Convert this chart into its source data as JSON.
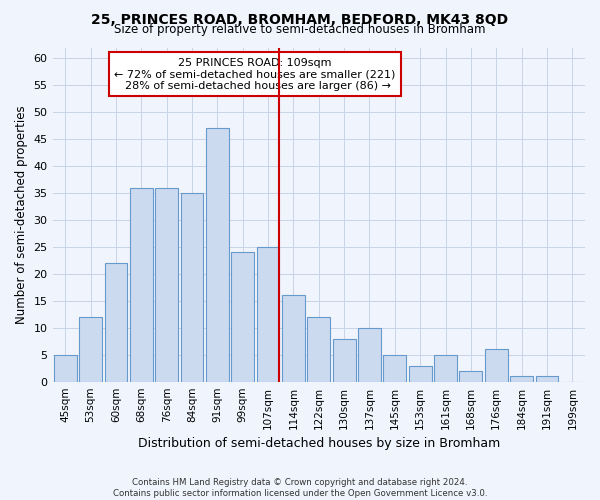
{
  "title1": "25, PRINCES ROAD, BROMHAM, BEDFORD, MK43 8QD",
  "title2": "Size of property relative to semi-detached houses in Bromham",
  "xlabel": "Distribution of semi-detached houses by size in Bromham",
  "ylabel": "Number of semi-detached properties",
  "categories": [
    "45sqm",
    "53sqm",
    "60sqm",
    "68sqm",
    "76sqm",
    "84sqm",
    "91sqm",
    "99sqm",
    "107sqm",
    "114sqm",
    "122sqm",
    "130sqm",
    "137sqm",
    "145sqm",
    "153sqm",
    "161sqm",
    "168sqm",
    "176sqm",
    "184sqm",
    "191sqm",
    "199sqm"
  ],
  "values": [
    5,
    12,
    22,
    36,
    36,
    35,
    47,
    24,
    25,
    16,
    12,
    8,
    10,
    5,
    3,
    5,
    2,
    6,
    1,
    1,
    0
  ],
  "bar_color": "#ccdaf0",
  "bar_edge_color": "#6699cc",
  "grid_color": "#c8d4e8",
  "background_color": "#ffffff",
  "fig_background_color": "#f0f4fc",
  "red_line_index": 8,
  "red_line_color": "#cc0000",
  "annotation_line1": "25 PRINCES ROAD: 109sqm",
  "annotation_line2": "← 72% of semi-detached houses are smaller (221)",
  "annotation_line3": "  28% of semi-detached houses are larger (86) →",
  "annotation_box_color": "#ffffff",
  "annotation_box_edge_color": "#cc0000",
  "footer_text": "Contains HM Land Registry data © Crown copyright and database right 2024.\nContains public sector information licensed under the Open Government Licence v3.0.",
  "ylim": [
    0,
    62
  ],
  "yticks": [
    0,
    5,
    10,
    15,
    20,
    25,
    30,
    35,
    40,
    45,
    50,
    55,
    60
  ]
}
